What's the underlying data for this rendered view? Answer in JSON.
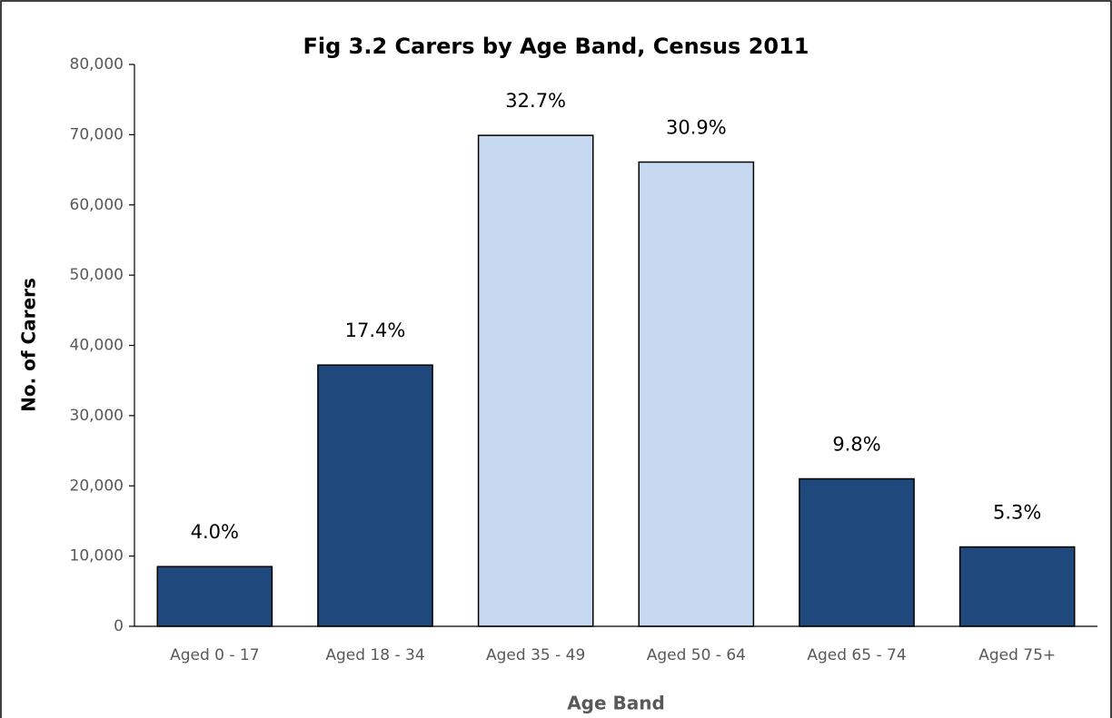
{
  "chart_data": {
    "type": "bar",
    "title": "Fig 3.2 Carers by Age Band, Census 2011",
    "x_label": "Age Band",
    "y_label": "No. of Carers",
    "categories": [
      "Aged 0 - 17",
      "Aged 18 - 34",
      "Aged 35 - 49",
      "Aged 50 - 64",
      "Aged 65 - 74",
      "Aged 75+"
    ],
    "values": [
      8500,
      37200,
      69900,
      66100,
      21000,
      11300
    ],
    "data_labels": [
      "4.0%",
      "17.4%",
      "32.7%",
      "30.9%",
      "9.8%",
      "5.3%"
    ],
    "colors": [
      "#1f497d",
      "#1f497d",
      "#c6d9f0",
      "#c6d9f0",
      "#1f497d",
      "#1f497d"
    ],
    "ylim": [
      0,
      80000
    ],
    "yticks": [
      0,
      {
        "value": 10000,
        "label": "10,000"
      },
      {
        "value": 20000,
        "label": "20,000"
      },
      {
        "value": 30000,
        "label": "30,000"
      },
      {
        "value": 40000,
        "label": "40,000"
      },
      {
        "value": 50000,
        "label": "50,000"
      },
      {
        "value": 60000,
        "label": "60,000"
      },
      {
        "value": 70000,
        "label": "70,000"
      },
      {
        "value": 80000,
        "label": "80,000"
      }
    ],
    "grid": false
  }
}
